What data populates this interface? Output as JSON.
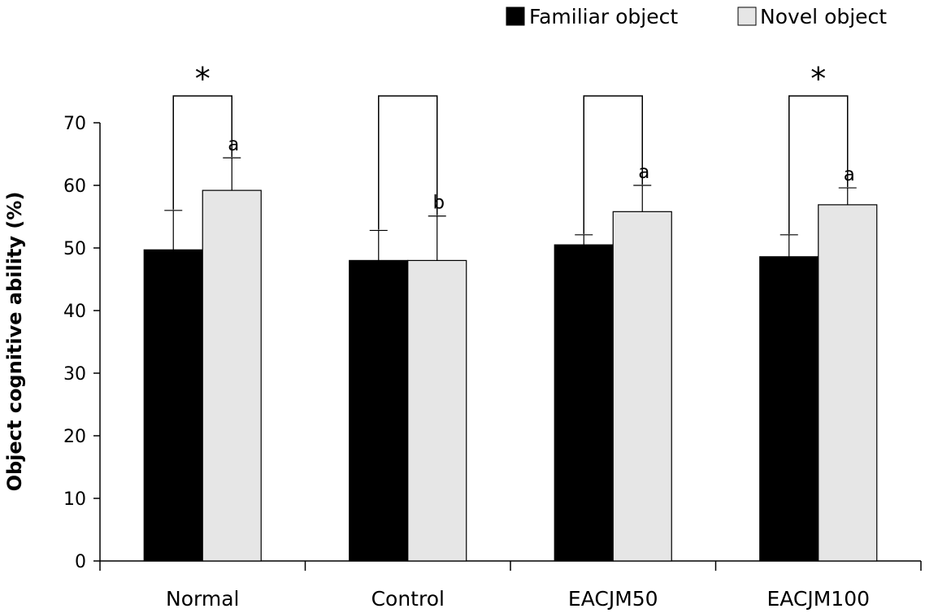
{
  "chart_data": {
    "type": "bar",
    "title": "",
    "xlabel": "",
    "ylabel": "Object cognitive ability (%)",
    "ylim": [
      0,
      70
    ],
    "yticks": [
      0,
      10,
      20,
      30,
      40,
      50,
      60,
      70
    ],
    "categories": [
      "Normal",
      "Control",
      "EACJM50",
      "EACJM100"
    ],
    "legend_position": "top-right",
    "grid": false,
    "series": [
      {
        "name": "Familiar object",
        "color": "#000000",
        "values": [
          49.7,
          48.0,
          50.5,
          48.6
        ],
        "errors": [
          6.3,
          4.8,
          1.6,
          3.5
        ]
      },
      {
        "name": "Novel object",
        "color": "#e6e6e6",
        "values": [
          59.2,
          48.0,
          55.8,
          56.9
        ],
        "errors": [
          5.2,
          7.1,
          4.2,
          2.7
        ]
      }
    ],
    "letters": [
      "a",
      "b",
      "a",
      "a"
    ],
    "significance": [
      "*",
      "",
      "",
      "*"
    ]
  }
}
